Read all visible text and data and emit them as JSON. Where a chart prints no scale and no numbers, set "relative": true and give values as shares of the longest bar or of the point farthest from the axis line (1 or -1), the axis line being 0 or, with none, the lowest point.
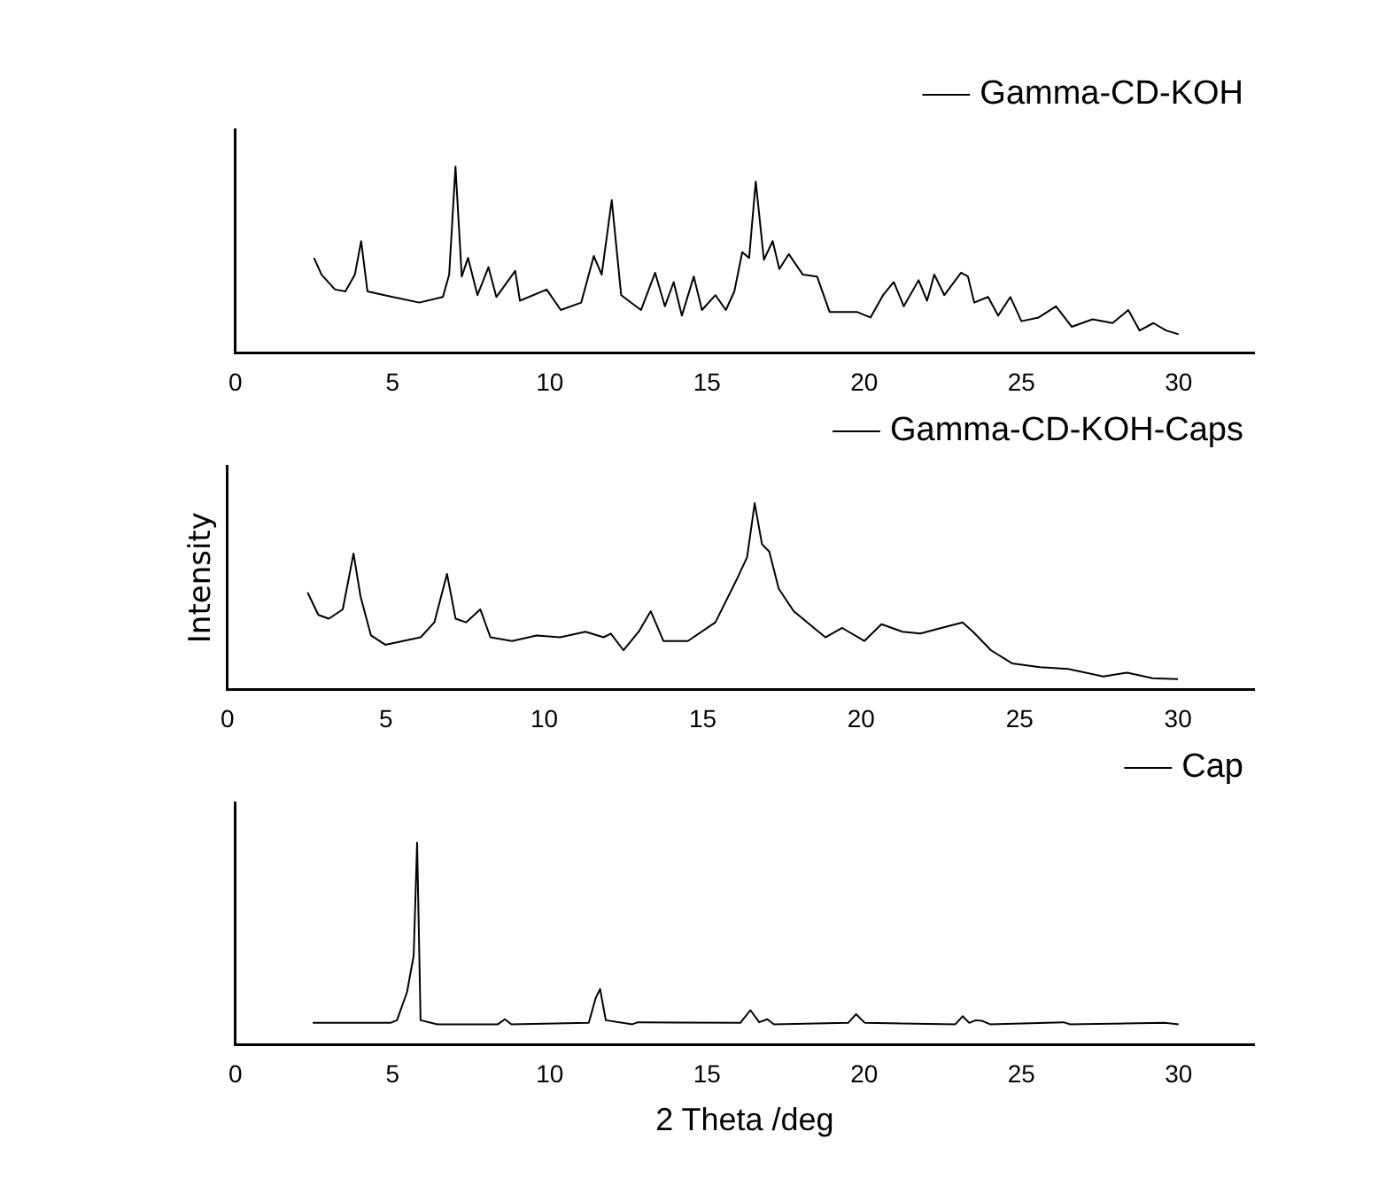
{
  "chart_data": [
    {
      "type": "line",
      "relative": true,
      "xlim": [
        0,
        32.4
      ],
      "xticks": [
        0,
        5,
        10,
        15,
        20,
        25,
        30
      ],
      "tick_labels": "x",
      "legend": "top right",
      "marker": "none",
      "x": [
        2.5,
        2.74,
        3.17,
        3.5,
        3.8,
        4.0,
        4.2,
        5.0,
        5.85,
        6.6,
        6.8,
        7.0,
        7.2,
        7.4,
        7.7,
        8.05,
        8.3,
        8.9,
        9.05,
        9.9,
        10.35,
        11.0,
        11.4,
        11.65,
        11.97,
        12.27,
        12.9,
        13.35,
        13.66,
        13.94,
        14.2,
        14.58,
        14.84,
        15.27,
        15.6,
        15.87,
        16.12,
        16.34,
        16.55,
        16.81,
        17.09,
        17.3,
        17.6,
        18.05,
        18.5,
        18.9,
        19.76,
        20.2,
        20.6,
        20.94,
        21.26,
        21.73,
        22.0,
        22.23,
        22.55,
        23.08,
        23.3,
        23.5,
        23.94,
        24.26,
        24.65,
        25.0,
        25.55,
        26.1,
        26.6,
        27.26,
        27.9,
        28.4,
        28.76,
        29.2,
        29.6,
        30.0
      ],
      "series": [
        {
          "name": "Gamma-CD-KOH",
          "color": "#000000",
          "values": [
            0.51,
            0.42,
            0.34,
            0.33,
            0.42,
            0.6,
            0.33,
            0.3,
            0.27,
            0.3,
            0.42,
            1.0,
            0.41,
            0.51,
            0.31,
            0.46,
            0.3,
            0.44,
            0.28,
            0.34,
            0.23,
            0.27,
            0.52,
            0.42,
            0.82,
            0.31,
            0.23,
            0.43,
            0.25,
            0.38,
            0.2,
            0.41,
            0.23,
            0.31,
            0.23,
            0.33,
            0.54,
            0.51,
            0.92,
            0.5,
            0.6,
            0.45,
            0.53,
            0.42,
            0.41,
            0.22,
            0.22,
            0.19,
            0.31,
            0.38,
            0.25,
            0.39,
            0.28,
            0.42,
            0.31,
            0.43,
            0.41,
            0.27,
            0.3,
            0.2,
            0.3,
            0.17,
            0.19,
            0.25,
            0.14,
            0.18,
            0.16,
            0.23,
            0.12,
            0.16,
            0.12,
            0.1
          ]
        }
      ]
    },
    {
      "type": "line",
      "relative": true,
      "xlim": [
        0,
        32.4
      ],
      "xticks": [
        0,
        5,
        10,
        15,
        20,
        25,
        30
      ],
      "tick_labels": "x",
      "legend": "top right",
      "marker": "none",
      "ylabel": "Intensity",
      "x": [
        2.53,
        2.87,
        3.2,
        3.64,
        3.98,
        4.2,
        4.53,
        4.98,
        6.1,
        6.53,
        6.93,
        7.2,
        7.53,
        7.98,
        8.3,
        8.98,
        9.76,
        10.5,
        11.3,
        11.87,
        12.1,
        12.5,
        12.98,
        13.36,
        13.76,
        14.53,
        15.4,
        16.1,
        16.4,
        16.64,
        16.87,
        17.1,
        17.4,
        17.87,
        18.3,
        18.87,
        19.4,
        20.1,
        20.64,
        21.3,
        21.87,
        22.53,
        23.2,
        23.53,
        24.1,
        24.76,
        25.64,
        26.53,
        27.64,
        28.4,
        29.2,
        30.0
      ],
      "series": [
        {
          "name": "Gamma-CD-KOH-Caps",
          "color": "#000000",
          "values": [
            0.52,
            0.4,
            0.38,
            0.43,
            0.73,
            0.5,
            0.29,
            0.24,
            0.28,
            0.36,
            0.62,
            0.38,
            0.36,
            0.43,
            0.28,
            0.26,
            0.29,
            0.28,
            0.31,
            0.28,
            0.3,
            0.21,
            0.31,
            0.42,
            0.26,
            0.26,
            0.36,
            0.6,
            0.71,
            1.0,
            0.78,
            0.74,
            0.54,
            0.42,
            0.36,
            0.28,
            0.33,
            0.26,
            0.35,
            0.31,
            0.3,
            0.33,
            0.36,
            0.31,
            0.21,
            0.14,
            0.12,
            0.11,
            0.07,
            0.09,
            0.06,
            0.055
          ]
        }
      ]
    },
    {
      "type": "line",
      "relative": true,
      "xlim": [
        0,
        32.4
      ],
      "xticks": [
        0,
        5,
        10,
        15,
        20,
        25,
        30
      ],
      "tick_labels": "x",
      "legend": "top right",
      "marker": "none",
      "xlabel": "2 Theta /deg",
      "x": [
        2.46,
        4.93,
        5.14,
        5.46,
        5.67,
        5.78,
        5.89,
        6.42,
        8.35,
        8.57,
        8.78,
        11.24,
        11.46,
        11.6,
        11.78,
        12.63,
        12.8,
        16.06,
        16.38,
        16.66,
        16.92,
        17.13,
        19.49,
        19.74,
        20.02,
        22.9,
        23.13,
        23.34,
        23.55,
        23.77,
        24.0,
        26.34,
        26.55,
        29.55,
        30.0
      ],
      "series": [
        {
          "name": "Cap",
          "color": "#000000",
          "values": [
            0.107,
            0.107,
            0.12,
            0.26,
            0.44,
            1.0,
            0.12,
            0.1,
            0.1,
            0.125,
            0.1,
            0.107,
            0.23,
            0.275,
            0.12,
            0.1,
            0.11,
            0.107,
            0.17,
            0.11,
            0.125,
            0.1,
            0.107,
            0.15,
            0.107,
            0.1,
            0.14,
            0.107,
            0.12,
            0.116,
            0.1,
            0.11,
            0.1,
            0.107,
            0.1
          ]
        }
      ]
    }
  ]
}
